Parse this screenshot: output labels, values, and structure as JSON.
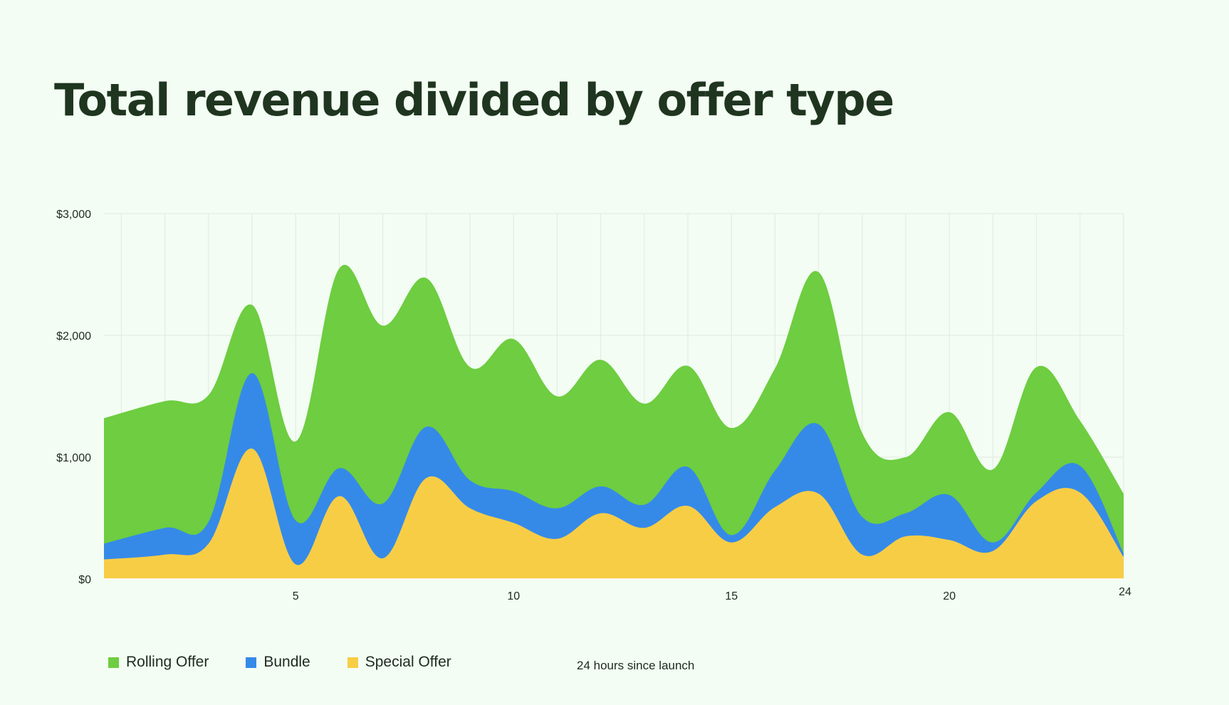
{
  "title": "Total revenue divided by offer type",
  "colors": {
    "background": "#f3fdf3",
    "rolling_offer": "#6ecd40",
    "bundle": "#358ae8",
    "special_offer": "#f8cd46",
    "grid": "#e2e9e2"
  },
  "legend": [
    {
      "name": "Rolling Offer",
      "color": "#6ecd40"
    },
    {
      "name": "Bundle",
      "color": "#358ae8"
    },
    {
      "name": "Special Offer",
      "color": "#f8cd46"
    }
  ],
  "chart_data": {
    "type": "area",
    "stacked": true,
    "title": "Total revenue divided by offer type",
    "xlabel": "24 hours since launch",
    "ylabel": "",
    "x": [
      1,
      2,
      3,
      4,
      5,
      6,
      7,
      8,
      9,
      10,
      11,
      12,
      13,
      14,
      15,
      16,
      17,
      18,
      19,
      20,
      21,
      22,
      23,
      24
    ],
    "xlim": [
      0.6,
      24
    ],
    "ylim": [
      0,
      3000
    ],
    "x_ticks": [
      {
        "value": 5,
        "label": "5"
      },
      {
        "value": 10,
        "label": "10"
      },
      {
        "value": 15,
        "label": "15"
      },
      {
        "value": 20,
        "label": "20"
      },
      {
        "value": 24,
        "label": "24"
      }
    ],
    "y_ticks": [
      {
        "value": 0,
        "label": "$0"
      },
      {
        "value": 1000,
        "label": "$1,000"
      },
      {
        "value": 2000,
        "label": "$2,000"
      },
      {
        "value": 3000,
        "label": "$3,000"
      }
    ],
    "grid": true,
    "legend_position": "bottom-left",
    "series": [
      {
        "name": "Special Offer",
        "color": "#f8cd46",
        "values": [
          160,
          200,
          290,
          1070,
          120,
          680,
          170,
          830,
          580,
          460,
          330,
          540,
          420,
          600,
          300,
          590,
          700,
          200,
          350,
          320,
          230,
          640,
          710,
          180
        ]
      },
      {
        "name": "Bundle",
        "color": "#358ae8",
        "values": [
          130,
          220,
          180,
          620,
          360,
          230,
          450,
          420,
          230,
          260,
          250,
          220,
          190,
          320,
          60,
          300,
          570,
          310,
          190,
          370,
          70,
          70,
          220,
          30
        ]
      },
      {
        "name": "Rolling Offer",
        "color": "#6ecd40",
        "values": [
          1030,
          1040,
          1040,
          560,
          650,
          1640,
          1460,
          1220,
          930,
          1250,
          920,
          1040,
          830,
          830,
          880,
          840,
          1250,
          690,
          460,
          680,
          600,
          1030,
          370,
          490
        ]
      }
    ]
  }
}
